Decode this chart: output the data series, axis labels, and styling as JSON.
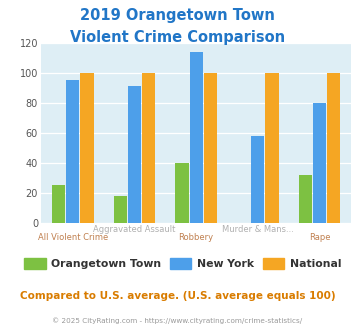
{
  "title_line1": "2019 Orangetown Town",
  "title_line2": "Violent Crime Comparison",
  "categories": [
    "All Violent Crime",
    "Aggravated Assault",
    "Robbery",
    "Murder & Mans...",
    "Rape"
  ],
  "label_top": [
    "",
    "Aggravated Assault",
    "",
    "Murder & Mans...",
    ""
  ],
  "label_bot": [
    "All Violent Crime",
    "",
    "Robbery",
    "",
    "Rape"
  ],
  "orangetown": [
    25,
    18,
    40,
    0,
    32
  ],
  "new_york": [
    95,
    91,
    114,
    58,
    80
  ],
  "national": [
    100,
    100,
    100,
    100,
    100
  ],
  "colors": {
    "orangetown": "#7dc142",
    "new_york": "#4d9fea",
    "national": "#f5a623",
    "title": "#2176c7",
    "background_chart": "#deeef5",
    "background_fig": "#ffffff",
    "axis_label_top": "#b0b0b0",
    "axis_label_bot": "#c08050",
    "footnote": "#999999",
    "footnote_link": "#4d9fea",
    "compare_text": "#d97c00"
  },
  "ylim": [
    0,
    120
  ],
  "yticks": [
    0,
    20,
    40,
    60,
    80,
    100,
    120
  ],
  "legend_labels": [
    "Orangetown Town",
    "New York",
    "National"
  ],
  "footnote": "© 2025 CityRating.com - https://www.cityrating.com/crime-statistics/",
  "compare_text": "Compared to U.S. average. (U.S. average equals 100)"
}
